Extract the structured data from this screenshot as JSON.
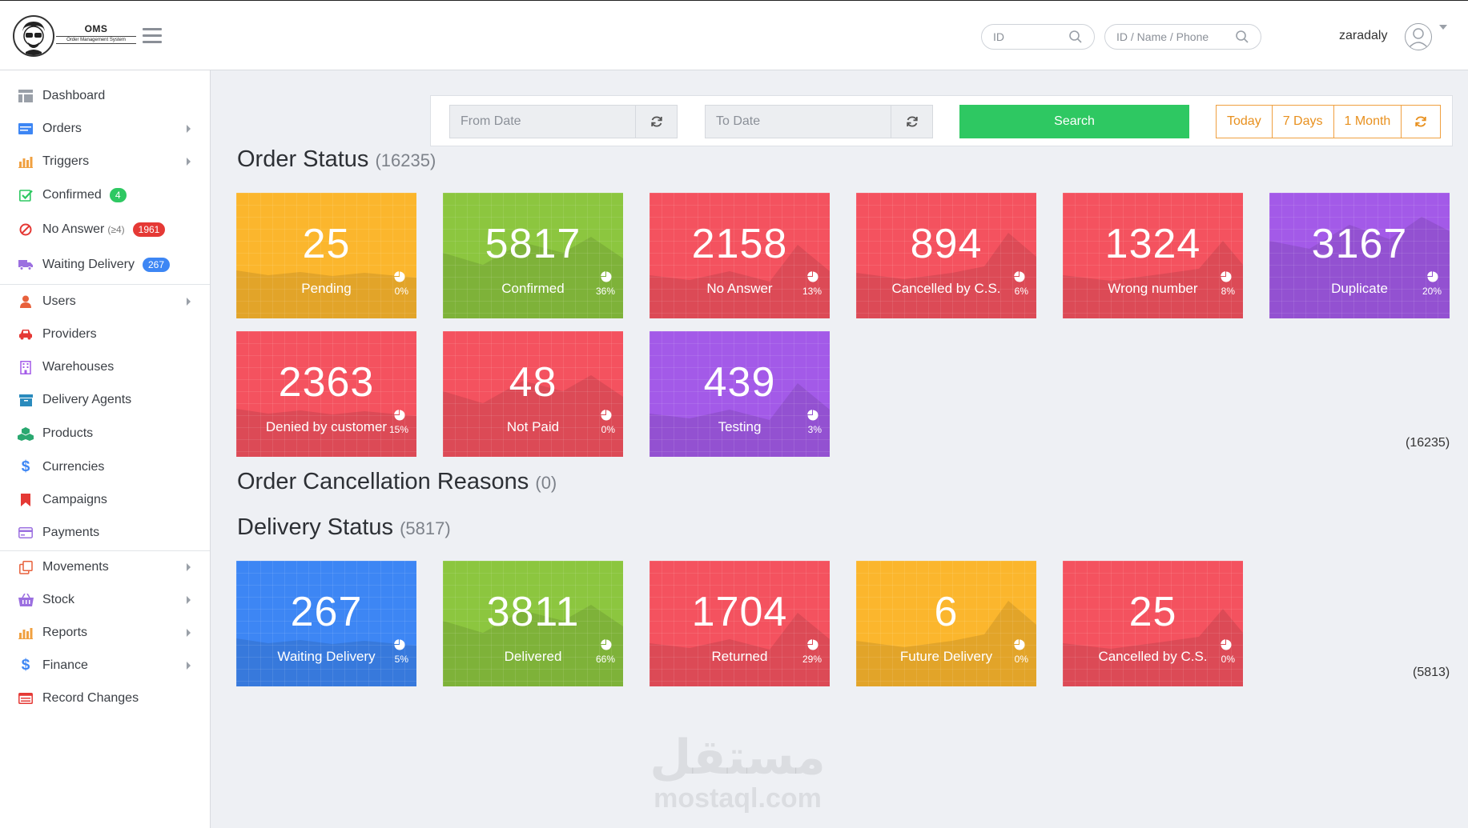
{
  "header": {
    "logo_title": "OMS",
    "logo_subtitle": "Order Management System",
    "search_id_placeholder": "ID",
    "search_multi_placeholder": "ID / Name / Phone",
    "username": "zaradaly"
  },
  "sidebar": {
    "items": [
      {
        "label": "Dashboard",
        "icon": "dashboard-icon"
      },
      {
        "label": "Orders",
        "icon": "orders-icon"
      },
      {
        "label": "Triggers",
        "icon": "bar-chart-icon"
      },
      {
        "label": "Confirmed",
        "icon": "check-icon",
        "badge": "4"
      },
      {
        "label": "No Answer",
        "sub": "(≥4)",
        "icon": "no-answer-icon",
        "badge": "1961"
      },
      {
        "label": "Waiting Delivery",
        "icon": "truck-icon",
        "badge": "267"
      },
      {
        "label": "Users",
        "icon": "users-icon"
      },
      {
        "label": "Providers",
        "icon": "car-icon"
      },
      {
        "label": "Warehouses",
        "icon": "building-icon"
      },
      {
        "label": "Delivery Agents",
        "icon": "box-icon"
      },
      {
        "label": "Products",
        "icon": "cubes-icon"
      },
      {
        "label": "Currencies",
        "icon": "dollar-icon"
      },
      {
        "label": "Campaigns",
        "icon": "bookmark-icon"
      },
      {
        "label": "Payments",
        "icon": "credit-card-icon"
      },
      {
        "label": "Movements",
        "icon": "clone-icon"
      },
      {
        "label": "Stock",
        "icon": "basket-icon"
      },
      {
        "label": "Reports",
        "icon": "bar-chart-icon"
      },
      {
        "label": "Finance",
        "icon": "dollar-icon"
      },
      {
        "label": "Record Changes",
        "icon": "list-icon"
      }
    ]
  },
  "filter": {
    "from_placeholder": "From Date",
    "to_placeholder": "To Date",
    "search_label": "Search",
    "ranges": [
      "Today",
      "7 Days",
      "1 Month"
    ]
  },
  "order_status": {
    "title": "Order Status",
    "count": "(16235)",
    "total": "(16235)",
    "cards": [
      {
        "value": "25",
        "label": "Pending",
        "pct": "0%",
        "color": "#fbb62d"
      },
      {
        "value": "5817",
        "label": "Confirmed",
        "pct": "36%",
        "color": "#8cc63f"
      },
      {
        "value": "2158",
        "label": "No Answer",
        "pct": "13%",
        "color": "#f4525f"
      },
      {
        "value": "894",
        "label": "Cancelled by C.S.",
        "pct": "6%",
        "color": "#f4525f"
      },
      {
        "value": "1324",
        "label": "Wrong number",
        "pct": "8%",
        "color": "#f4525f"
      },
      {
        "value": "3167",
        "label": "Duplicate",
        "pct": "20%",
        "color": "#a35ae8"
      },
      {
        "value": "2363",
        "label": "Denied by customer",
        "pct": "15%",
        "color": "#f4525f"
      },
      {
        "value": "48",
        "label": "Not Paid",
        "pct": "0%",
        "color": "#f4525f"
      },
      {
        "value": "439",
        "label": "Testing",
        "pct": "3%",
        "color": "#a35ae8"
      }
    ]
  },
  "cancellation": {
    "title": "Order Cancellation Reasons",
    "count": "(0)"
  },
  "delivery_status": {
    "title": "Delivery Status",
    "count": "(5817)",
    "total": "(5813)",
    "cards": [
      {
        "value": "267",
        "label": "Waiting Delivery",
        "pct": "5%",
        "color": "#3d86f4"
      },
      {
        "value": "3811",
        "label": "Delivered",
        "pct": "66%",
        "color": "#8cc63f"
      },
      {
        "value": "1704",
        "label": "Returned",
        "pct": "29%",
        "color": "#f4525f"
      },
      {
        "value": "6",
        "label": "Future Delivery",
        "pct": "0%",
        "color": "#fbb62d"
      },
      {
        "value": "25",
        "label": "Cancelled by C.S.",
        "pct": "0%",
        "color": "#f4525f"
      }
    ]
  },
  "watermark": {
    "arabic": "مستقل",
    "domain": "mostaql.com"
  },
  "colors": {
    "success": "#2ec862",
    "warning": "#f0a040",
    "danger": "#e53935",
    "primary": "#3d86f4"
  }
}
